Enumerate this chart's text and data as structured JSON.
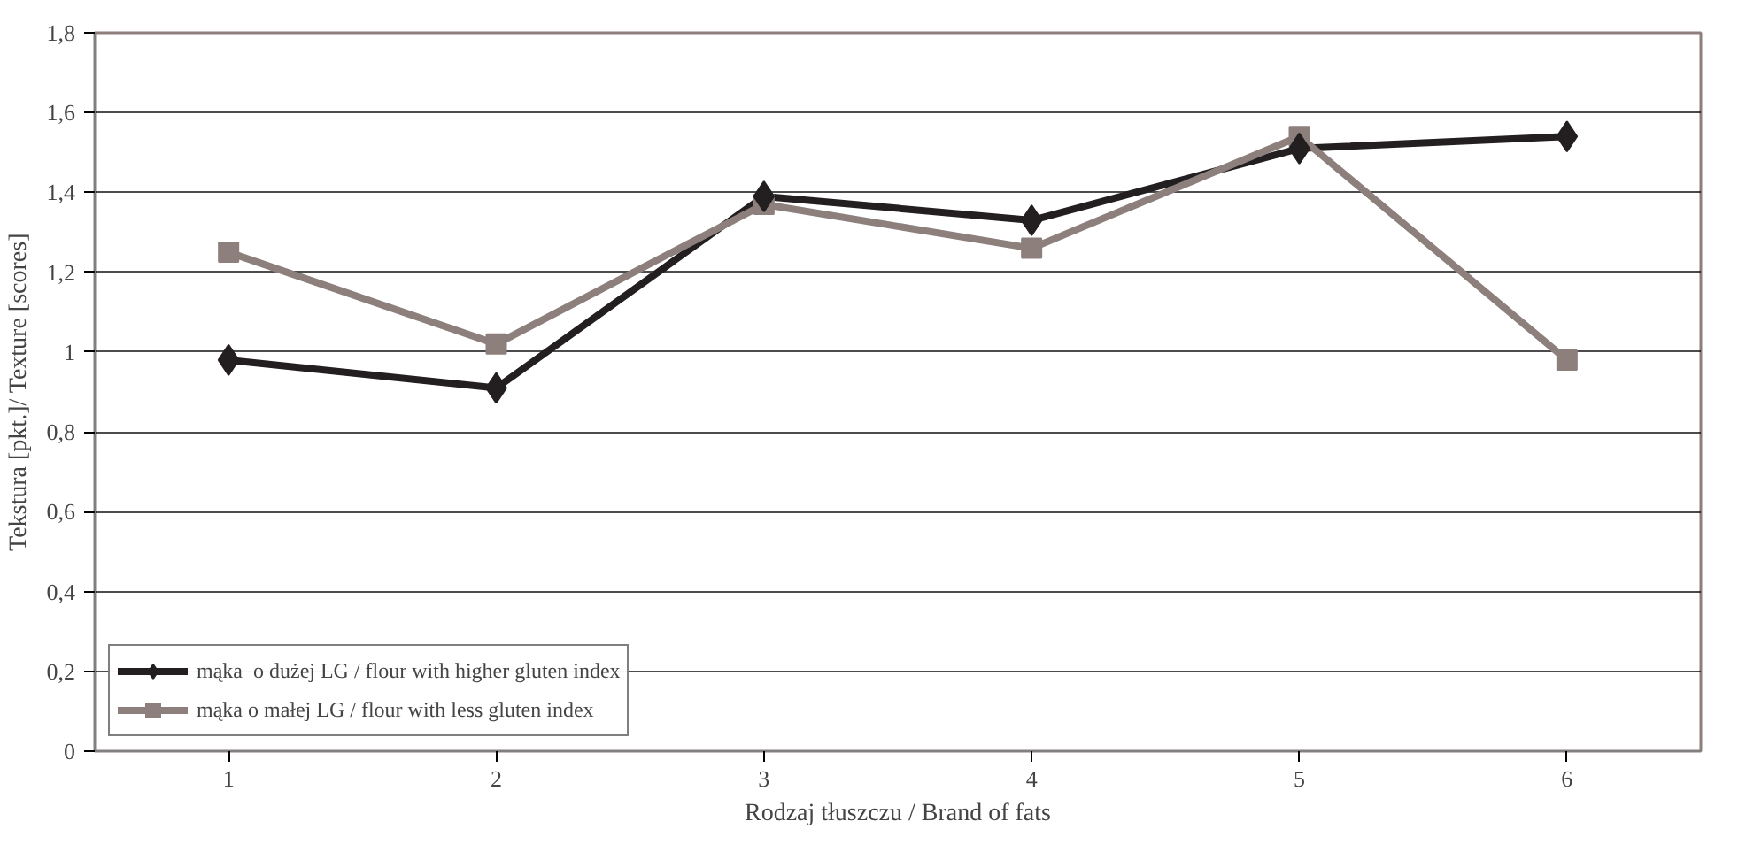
{
  "chart_data": {
    "type": "line",
    "xlabel": "Rodzaj tłuszczu / Brand of fats",
    "ylabel": "Tekstura [pkt.]/ Texture [scores]",
    "categories": [
      "1",
      "2",
      "3",
      "4",
      "5",
      "6"
    ],
    "series": [
      {
        "name": "mąka  o dużej LG / flour with higher gluten index",
        "color": "#231f20",
        "marker": "diamond",
        "values": [
          0.98,
          0.91,
          1.39,
          1.33,
          1.51,
          1.54
        ]
      },
      {
        "name": "mąka o małej LG / flour with less gluten index",
        "color": "#8c7f7c",
        "marker": "square",
        "values": [
          1.25,
          1.02,
          1.37,
          1.26,
          1.54,
          0.98
        ]
      }
    ],
    "ylim": [
      0,
      1.8
    ],
    "yticks": [
      0,
      {
        "value": 0.2,
        "label": "0,2"
      },
      {
        "value": 0.4,
        "label": "0,4"
      },
      {
        "value": 0.6,
        "label": "0,6"
      },
      {
        "value": 0.8,
        "label": "0,8"
      },
      1,
      {
        "value": 1.2,
        "label": "1,2"
      },
      {
        "value": 1.4,
        "label": "1,4"
      },
      {
        "value": 1.6,
        "label": "1,6"
      },
      {
        "value": 1.8,
        "label": "1,8"
      }
    ],
    "grid": "y",
    "legend": "bottom left"
  }
}
